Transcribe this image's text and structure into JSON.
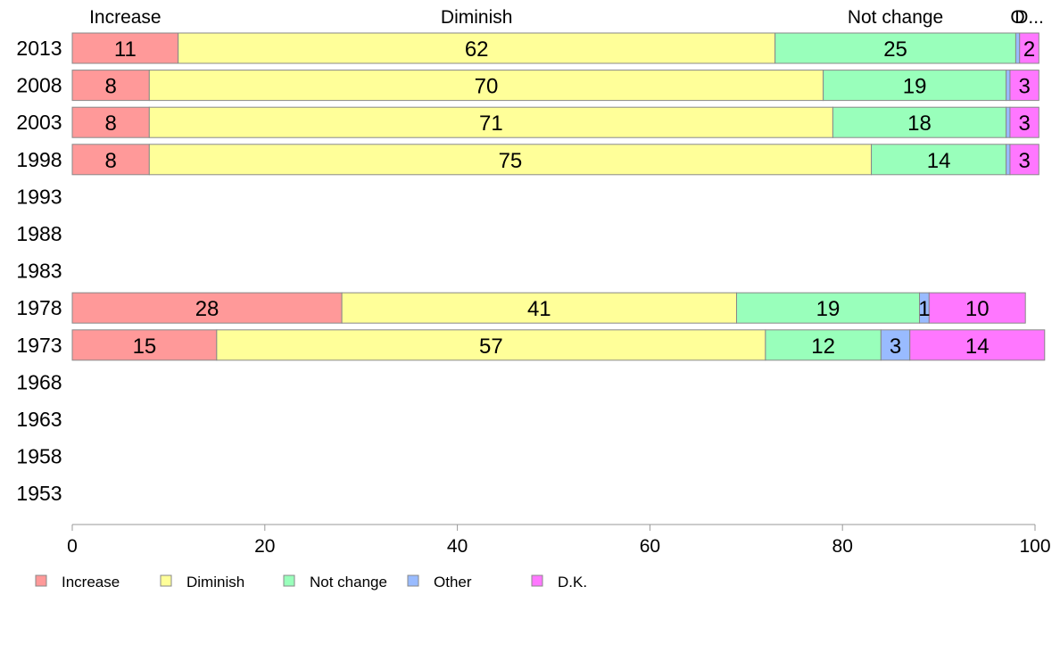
{
  "chart_data": {
    "type": "bar",
    "orientation": "horizontal",
    "stacked": true,
    "categories": [
      "2013",
      "2008",
      "2003",
      "1998",
      "1993",
      "1988",
      "1983",
      "1978",
      "1973",
      "1968",
      "1963",
      "1958",
      "1953"
    ],
    "series": [
      {
        "name": "Increase",
        "color": "#ff9999",
        "values": [
          11,
          8,
          8,
          8,
          null,
          null,
          null,
          28,
          15,
          null,
          null,
          null,
          null
        ],
        "labels": [
          "11",
          "8",
          "8",
          "8",
          "",
          "",
          "",
          "28",
          "15",
          "",
          "",
          "",
          ""
        ]
      },
      {
        "name": "Diminish",
        "color": "#ffff99",
        "values": [
          62,
          70,
          71,
          75,
          null,
          null,
          null,
          41,
          57,
          null,
          null,
          null,
          null
        ],
        "labels": [
          "62",
          "70",
          "71",
          "75",
          "",
          "",
          "",
          "41",
          "57",
          "",
          "",
          "",
          ""
        ]
      },
      {
        "name": "Not change",
        "color": "#99ffbb",
        "values": [
          25,
          19,
          18,
          14,
          null,
          null,
          null,
          19,
          12,
          null,
          null,
          null,
          null
        ],
        "labels": [
          "25",
          "19",
          "18",
          "14",
          "",
          "",
          "",
          "19",
          "12",
          "",
          "",
          "",
          ""
        ]
      },
      {
        "name": "Other",
        "color": "#99bbff",
        "values": [
          0.4,
          0.4,
          0.4,
          0.4,
          null,
          null,
          null,
          1,
          3,
          null,
          null,
          null,
          null
        ],
        "labels": [
          "",
          "",
          "",
          "",
          "",
          "",
          "",
          "1",
          "3",
          "",
          "",
          "",
          ""
        ]
      },
      {
        "name": "D.K.",
        "color": "#ff77ff",
        "values": [
          2,
          3,
          3,
          3,
          null,
          null,
          null,
          10,
          14,
          null,
          null,
          null,
          null
        ],
        "labels": [
          "2",
          "3",
          "3",
          "3",
          "",
          "",
          "",
          "10",
          "14",
          "",
          "",
          "",
          ""
        ]
      }
    ],
    "xlim": [
      0,
      100
    ],
    "xticks": [
      "0",
      "20",
      "40",
      "60",
      "80",
      "100"
    ],
    "top_labels": [
      "Increase",
      "Diminish",
      "Not change",
      "O",
      "D..."
    ],
    "legend": {
      "position": "bottom-left",
      "entries": [
        "Increase",
        "Diminish",
        "Not change",
        "Other",
        "D.K."
      ]
    },
    "grid": false
  }
}
